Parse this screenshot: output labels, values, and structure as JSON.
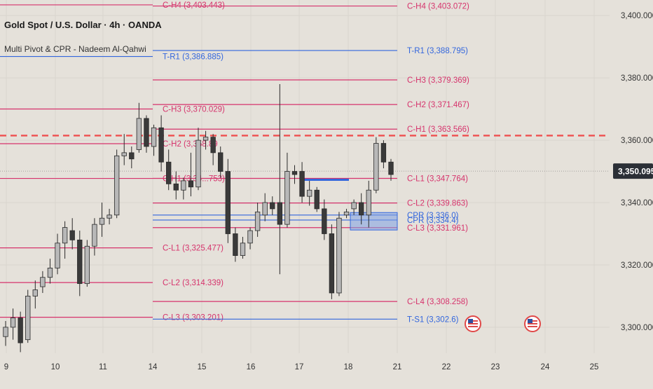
{
  "header": {
    "title": "Gold Spot / U.S. Dollar · 4h · OANDA",
    "indicator": "Multi Pivot & CPR - Nadeem Al-Qahwi"
  },
  "colors": {
    "background": "#e5e1da",
    "up_candle": "#b8b8b8",
    "down_candle": "#3a3a3a",
    "camarilla": "#d6336c",
    "pivot_blue": "#3366dd",
    "price_tag_bg": "#2b2f36",
    "resistance_dashed": "#ef4f4f"
  },
  "price_tag": "3,350.095",
  "chart_data": {
    "type": "candlestick",
    "ylim": [
      3293,
      3405
    ],
    "y_ticks": [
      {
        "value": 3400,
        "label": "3,400.000"
      },
      {
        "value": 3380,
        "label": "3,380.000"
      },
      {
        "value": 3360,
        "label": "3,360.000"
      },
      {
        "value": 3340,
        "label": "3,340.000"
      },
      {
        "value": 3320,
        "label": "3,320.000"
      },
      {
        "value": 3300,
        "label": "3,300.000"
      }
    ],
    "x_ticks": [
      {
        "day": 9,
        "label": "9"
      },
      {
        "day": 10,
        "label": "10"
      },
      {
        "day": 11,
        "label": "11"
      },
      {
        "day": 14,
        "label": "14"
      },
      {
        "day": 15,
        "label": "15"
      },
      {
        "day": 16,
        "label": "16"
      },
      {
        "day": 17,
        "label": "17"
      },
      {
        "day": 18,
        "label": "18"
      },
      {
        "day": 21,
        "label": "21"
      },
      {
        "day": 22,
        "label": "22"
      },
      {
        "day": 23,
        "label": "23"
      },
      {
        "day": 24,
        "label": "24"
      },
      {
        "day": 25,
        "label": "25"
      }
    ],
    "candles": [
      {
        "o": 3297,
        "h": 3302,
        "l": 3294,
        "c": 3300
      },
      {
        "o": 3300,
        "h": 3306,
        "l": 3296,
        "c": 3303
      },
      {
        "o": 3303,
        "h": 3305,
        "l": 3292,
        "c": 3295
      },
      {
        "o": 3296,
        "h": 3312,
        "l": 3295,
        "c": 3310
      },
      {
        "o": 3310,
        "h": 3315,
        "l": 3306,
        "c": 3312
      },
      {
        "o": 3313,
        "h": 3318,
        "l": 3311,
        "c": 3316
      },
      {
        "o": 3316,
        "h": 3322,
        "l": 3314,
        "c": 3319
      },
      {
        "o": 3319,
        "h": 3330,
        "l": 3317,
        "c": 3327
      },
      {
        "o": 3327,
        "h": 3334,
        "l": 3322,
        "c": 3332
      },
      {
        "o": 3331,
        "h": 3335,
        "l": 3325,
        "c": 3328
      },
      {
        "o": 3328,
        "h": 3331,
        "l": 3310,
        "c": 3314
      },
      {
        "o": 3314,
        "h": 3328,
        "l": 3313,
        "c": 3326
      },
      {
        "o": 3326,
        "h": 3335,
        "l": 3323,
        "c": 3333
      },
      {
        "o": 3333,
        "h": 3340,
        "l": 3329,
        "c": 3335
      },
      {
        "o": 3335,
        "h": 3338,
        "l": 3333,
        "c": 3336
      },
      {
        "o": 3336,
        "h": 3357,
        "l": 3335,
        "c": 3355
      },
      {
        "o": 3355,
        "h": 3362,
        "l": 3352,
        "c": 3356
      },
      {
        "o": 3356,
        "h": 3358,
        "l": 3351,
        "c": 3354
      },
      {
        "o": 3357,
        "h": 3372,
        "l": 3356,
        "c": 3367
      },
      {
        "o": 3367,
        "h": 3368,
        "l": 3356,
        "c": 3358
      },
      {
        "o": 3358,
        "h": 3365,
        "l": 3355,
        "c": 3364
      },
      {
        "o": 3364,
        "h": 3368,
        "l": 3350,
        "c": 3353
      },
      {
        "o": 3353,
        "h": 3357,
        "l": 3344,
        "c": 3346
      },
      {
        "o": 3346,
        "h": 3350,
        "l": 3341,
        "c": 3344
      },
      {
        "o": 3344,
        "h": 3348,
        "l": 3341,
        "c": 3347
      },
      {
        "o": 3347,
        "h": 3356,
        "l": 3342,
        "c": 3345
      },
      {
        "o": 3345,
        "h": 3364,
        "l": 3344,
        "c": 3360
      },
      {
        "o": 3360,
        "h": 3363,
        "l": 3357,
        "c": 3361
      },
      {
        "o": 3361,
        "h": 3362,
        "l": 3352,
        "c": 3356
      },
      {
        "o": 3356,
        "h": 3358,
        "l": 3348,
        "c": 3350
      },
      {
        "o": 3350,
        "h": 3354,
        "l": 3327,
        "c": 3330
      },
      {
        "o": 3330,
        "h": 3332,
        "l": 3321,
        "c": 3323
      },
      {
        "o": 3323,
        "h": 3329,
        "l": 3322,
        "c": 3327
      },
      {
        "o": 3327,
        "h": 3332,
        "l": 3325,
        "c": 3331
      },
      {
        "o": 3331,
        "h": 3340,
        "l": 3329,
        "c": 3337
      },
      {
        "o": 3336,
        "h": 3343,
        "l": 3334,
        "c": 3340
      },
      {
        "o": 3340,
        "h": 3342,
        "l": 3336,
        "c": 3338
      },
      {
        "o": 3340,
        "h": 3378,
        "l": 3317,
        "c": 3333
      },
      {
        "o": 3333,
        "h": 3356,
        "l": 3332,
        "c": 3350
      },
      {
        "o": 3350,
        "h": 3352,
        "l": 3346,
        "c": 3349
      },
      {
        "o": 3350,
        "h": 3353,
        "l": 3340,
        "c": 3342
      },
      {
        "o": 3342,
        "h": 3347,
        "l": 3339,
        "c": 3344
      },
      {
        "o": 3344,
        "h": 3345,
        "l": 3337,
        "c": 3338
      },
      {
        "o": 3338,
        "h": 3341,
        "l": 3328,
        "c": 3330
      },
      {
        "o": 3330,
        "h": 3333,
        "l": 3309,
        "c": 3311
      },
      {
        "o": 3311,
        "h": 3337,
        "l": 3310,
        "c": 3335
      },
      {
        "o": 3336,
        "h": 3338,
        "l": 3335,
        "c": 3337
      },
      {
        "o": 3338,
        "h": 3341,
        "l": 3336,
        "c": 3340
      },
      {
        "o": 3340,
        "h": 3343,
        "l": 3333,
        "c": 3336
      },
      {
        "o": 3336,
        "h": 3347,
        "l": 3332,
        "c": 3344
      },
      {
        "o": 3344,
        "h": 3361,
        "l": 3343,
        "c": 3359
      },
      {
        "o": 3359,
        "h": 3360,
        "l": 3351,
        "c": 3353
      },
      {
        "o": 3353,
        "h": 3354,
        "l": 3347,
        "c": 3349
      }
    ],
    "levels": [
      {
        "label": "C-H4 (3,403.443)",
        "value": 3403.443,
        "color": "camarilla",
        "from": "p0",
        "to": "p1"
      },
      {
        "label": "C-H4 (3,403.072)",
        "value": 3403.072,
        "color": "camarilla",
        "from": "p1",
        "to": "p2"
      },
      {
        "label": "T-R1 (3,386.885)",
        "value": 3386.885,
        "color": "blue",
        "from": "p0",
        "to": "p1"
      },
      {
        "label": "T-R1 (3,388.795)",
        "value": 3388.795,
        "color": "blue",
        "from": "p1",
        "to": "p2"
      },
      {
        "label": "C-H3 (3,370.029)",
        "value": 3370.029,
        "color": "camarilla",
        "from": "p0",
        "to": "p1"
      },
      {
        "label": "C-H3 (3,379.369)",
        "value": 3379.369,
        "color": "camarilla",
        "from": "p1",
        "to": "p2"
      },
      {
        "label": "C-H2 (3,358.89",
        "value": 3358.89,
        "color": "camarilla",
        "from": "p0",
        "to": "p1"
      },
      {
        "label": "C-H2 (3,371.467)",
        "value": 3371.467,
        "color": "camarilla",
        "from": "p1",
        "to": "p2"
      },
      {
        "label": "C-H1 (3,34...753)",
        "value": 3347.753,
        "color": "camarilla",
        "from": "p0",
        "to": "p1"
      },
      {
        "label": "C-H1 (3,363.566)",
        "value": 3363.566,
        "color": "camarilla",
        "from": "p1",
        "to": "p2"
      },
      {
        "label": "C-L1 (3,347.764)",
        "value": 3347.764,
        "color": "camarilla",
        "from": "p1",
        "to": "p2"
      },
      {
        "label": "C-L1 (3,325.477)",
        "value": 3325.477,
        "color": "camarilla",
        "from": "p0",
        "to": "p1"
      },
      {
        "label": "C-L2 (3,314.339)",
        "value": 3314.339,
        "color": "camarilla",
        "from": "p0",
        "to": "p1"
      },
      {
        "label": "C-L3 (3,303.201)",
        "value": 3303.201,
        "color": "camarilla",
        "from": "p0",
        "to": "p1"
      },
      {
        "label": "C-L2 (3,339.863)",
        "value": 3339.863,
        "color": "camarilla",
        "from": "p1",
        "to": "p2"
      },
      {
        "label": "CPR (3,336.0)",
        "value": 3336.0,
        "color": "blue",
        "from": "p1",
        "to": "p2"
      },
      {
        "label": "CPR (3,334.4)",
        "value": 3334.4,
        "color": "blue",
        "from": "p1",
        "to": "p2"
      },
      {
        "label": "C-L3 (3,331.961)",
        "value": 3331.961,
        "color": "camarilla",
        "from": "p1",
        "to": "p2"
      },
      {
        "label": "C-L4 (3,308.258)",
        "value": 3308.258,
        "color": "camarilla",
        "from": "p1",
        "to": "p2"
      },
      {
        "label": "T-S1 (3,302.6)",
        "value": 3302.6,
        "color": "blue",
        "from": "p1",
        "to": "p2"
      }
    ],
    "dashed_level": 3361.5,
    "current_price": 3350.095
  }
}
